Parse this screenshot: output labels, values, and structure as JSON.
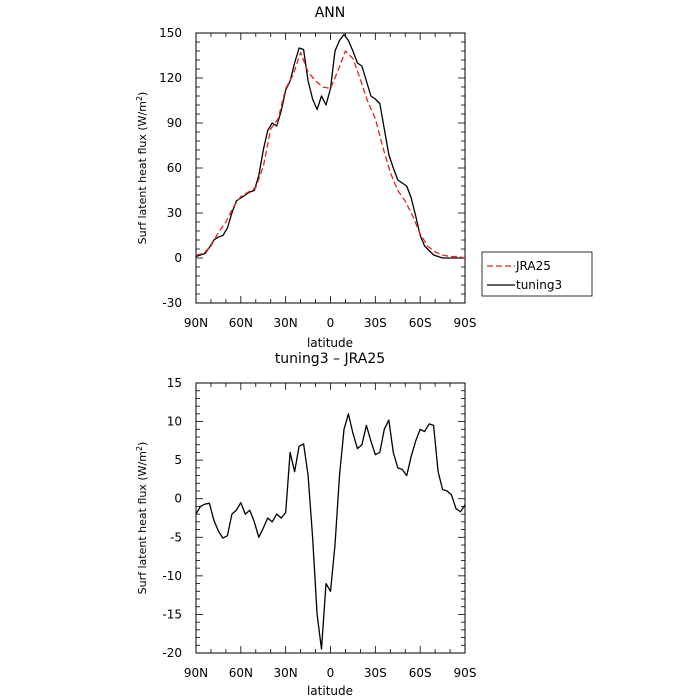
{
  "chart_data": [
    {
      "type": "line",
      "title": "ANN",
      "xlabel": "latitude",
      "ylabel": "Surf latent heat flux (W/m²)",
      "ylabel_main": "Surf latent heat flux (W/m",
      "ylabel_sup": "2",
      "ylabel_close": ")",
      "xlim": [
        90,
        -90
      ],
      "ylim": [
        -30,
        150
      ],
      "x_ticks": [
        90,
        60,
        30,
        0,
        -30,
        -60,
        -90
      ],
      "x_tick_labels": [
        "90N",
        "60N",
        "30N",
        "0",
        "30S",
        "60S",
        "90S"
      ],
      "y_ticks": [
        -30,
        0,
        30,
        60,
        90,
        120,
        150
      ],
      "y_tick_labels": [
        "-30",
        "0",
        "30",
        "60",
        "90",
        "120",
        "150"
      ],
      "legend": {
        "placement": "right"
      },
      "series": [
        {
          "name": "JRA25",
          "color": "#e8231f",
          "style": "dashed",
          "x": [
            90,
            85,
            80,
            75,
            70,
            65,
            60,
            55,
            50,
            45,
            40,
            35,
            30,
            25,
            20,
            15,
            10,
            5,
            0,
            -5,
            -10,
            -15,
            -20,
            -25,
            -30,
            -35,
            -40,
            -45,
            -50,
            -55,
            -60,
            -65,
            -70,
            -75,
            -80,
            -85,
            -90
          ],
          "values": [
            2,
            3,
            8,
            17,
            24,
            34,
            41,
            44,
            47,
            61,
            86,
            93,
            113,
            122,
            137,
            124,
            118,
            114,
            113,
            125,
            138,
            133,
            119,
            104,
            93,
            74,
            57,
            45,
            38,
            28,
            16,
            8,
            4,
            2,
            1,
            1,
            0
          ]
        },
        {
          "name": "tuning3",
          "color": "#000000",
          "style": "solid",
          "x": [
            90,
            87,
            84,
            81,
            78,
            75,
            72,
            69,
            66,
            63,
            60,
            57,
            54,
            51,
            48,
            45,
            42,
            39,
            36,
            33,
            30,
            27,
            24,
            21,
            18,
            15,
            12,
            9,
            6,
            3,
            0,
            -3,
            -6,
            -9,
            -12,
            -15,
            -18,
            -21,
            -24,
            -27,
            -30,
            -33,
            -36,
            -39,
            -42,
            -45,
            -48,
            -51,
            -54,
            -57,
            -60,
            -63,
            -66,
            -69,
            -72,
            -75,
            -78,
            -81,
            -84,
            -87,
            -90
          ],
          "values": [
            1,
            2,
            3,
            7,
            12,
            14,
            15,
            20,
            30,
            38,
            40,
            42,
            44,
            45,
            55,
            72,
            85,
            90,
            88,
            98,
            112,
            118,
            130,
            140,
            139,
            118,
            106,
            99,
            108,
            102,
            113,
            138,
            145,
            149,
            145,
            138,
            130,
            128,
            118,
            108,
            106,
            103,
            86,
            69,
            60,
            52,
            50,
            48,
            40,
            28,
            15,
            8,
            5,
            2,
            1,
            0,
            0,
            0,
            0,
            0,
            0
          ]
        }
      ]
    },
    {
      "type": "line",
      "title": "tuning3 – JRA25",
      "xlabel": "latitude",
      "ylabel": "Surf latent heat flux (W/m²)",
      "ylabel_main": "Surf latent heat flux (W/m",
      "ylabel_sup": "2",
      "ylabel_close": ")",
      "xlim": [
        90,
        -90
      ],
      "ylim": [
        -20,
        15
      ],
      "x_ticks": [
        90,
        60,
        30,
        0,
        -30,
        -60,
        -90
      ],
      "x_tick_labels": [
        "90N",
        "60N",
        "30N",
        "0",
        "30S",
        "60S",
        "90S"
      ],
      "y_ticks": [
        -20,
        -15,
        -10,
        -5,
        0,
        5,
        10,
        15
      ],
      "y_tick_labels": [
        "-20",
        "-15",
        "-10",
        "-5",
        "0",
        "5",
        "10",
        "15"
      ],
      "series": [
        {
          "color": "#000000",
          "style": "solid",
          "x": [
            90,
            87,
            84,
            81,
            78,
            75,
            72,
            69,
            66,
            63,
            60,
            57,
            54,
            51,
            48,
            45,
            42,
            39,
            36,
            33,
            30,
            27,
            24,
            21,
            18,
            15,
            12,
            9,
            6,
            3,
            0,
            -3,
            -6,
            -9,
            -12,
            -15,
            -18,
            -21,
            -24,
            -27,
            -30,
            -33,
            -36,
            -39,
            -42,
            -45,
            -48,
            -51,
            -54,
            -57,
            -60,
            -63,
            -66,
            -69,
            -72,
            -75,
            -78,
            -81,
            -84,
            -87,
            -90
          ],
          "values": [
            -2,
            -1,
            -0.7,
            -0.6,
            -2.8,
            -4.2,
            -5.1,
            -4.8,
            -2,
            -1.5,
            -0.5,
            -2,
            -1.5,
            -3,
            -5,
            -3.8,
            -2.5,
            -3,
            -2,
            -2.5,
            -1.8,
            6,
            3.5,
            6.8,
            7.1,
            3,
            -5,
            -15,
            -19.5,
            -11,
            -12,
            -6,
            3,
            9,
            11,
            8.5,
            6.5,
            7,
            9.5,
            7.5,
            5.7,
            6,
            9,
            10.2,
            6,
            4,
            3.8,
            3,
            5.5,
            7.5,
            9,
            8.7,
            9.7,
            9.5,
            3.5,
            1.2,
            1,
            0.5,
            -1.3,
            -1.7,
            -0.8
          ]
        }
      ]
    }
  ]
}
